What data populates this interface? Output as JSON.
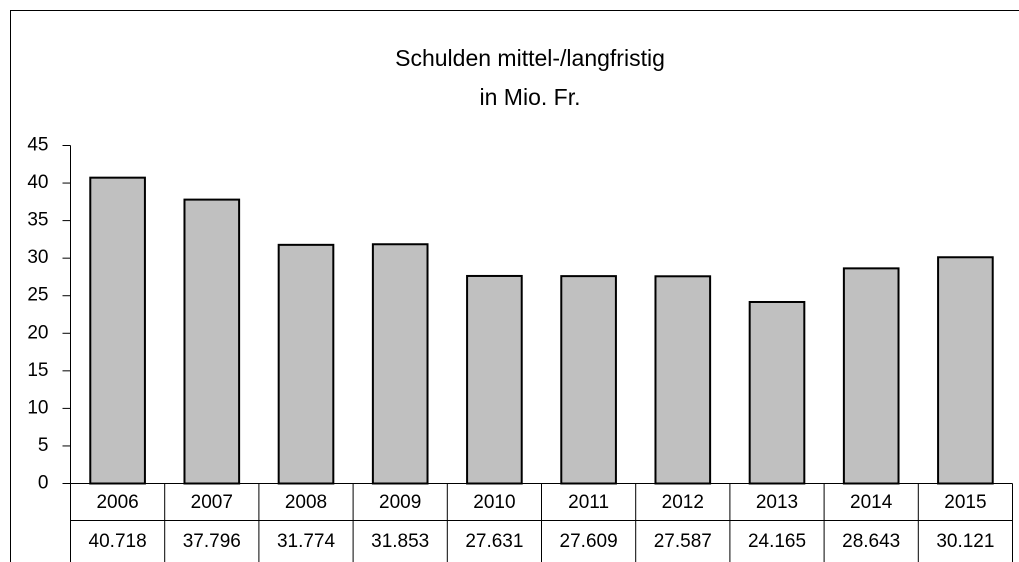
{
  "chart_data": {
    "type": "bar",
    "title": "Schulden mittel-/langfristig",
    "subtitle": "in Mio. Fr.",
    "categories": [
      "2006",
      "2007",
      "2008",
      "2009",
      "2010",
      "2011",
      "2012",
      "2013",
      "2014",
      "2015"
    ],
    "values": [
      40.718,
      37.796,
      31.774,
      31.853,
      27.631,
      27.609,
      27.587,
      24.165,
      28.643,
      30.121
    ],
    "color": "#c0c0c0",
    "ylim": [
      0,
      45
    ],
    "yticks": [
      0,
      5,
      10,
      15,
      20,
      25,
      30,
      35,
      40,
      45
    ],
    "grid": false
  }
}
